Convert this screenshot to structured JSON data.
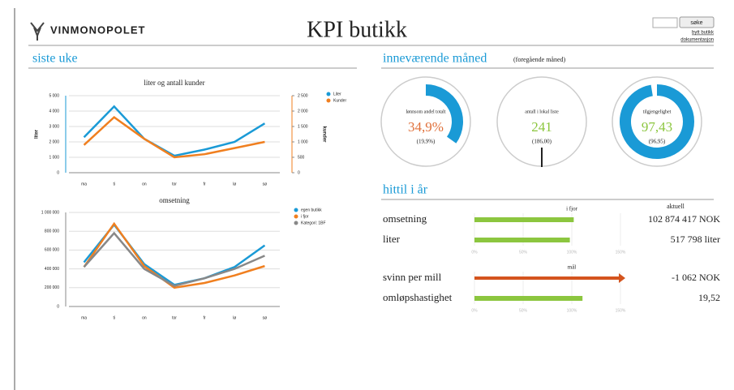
{
  "header": {
    "logo": "VINMONOPOLET",
    "title": "KPI butikk",
    "search_button": "søke",
    "links": [
      "bytt butikk",
      "dokumentasjon"
    ]
  },
  "sections": {
    "week": "siste uke",
    "month": "inneværende måned",
    "month_note": "(foregående måned)",
    "year": "hittil i år"
  },
  "chart_data": [
    {
      "type": "line",
      "title": "liter og antall kunder",
      "categories": [
        "ma",
        "ti",
        "on",
        "tor",
        "fr",
        "lø",
        "sø"
      ],
      "ylabel": "liter",
      "y2label": "kunder",
      "ylim": [
        0,
        5000
      ],
      "yticks": [
        0,
        {
          "value": 1000,
          "label": "1 000"
        },
        {
          "value": 2000,
          "label": "2 000"
        },
        {
          "value": 3000,
          "label": "3 000"
        },
        {
          "value": 4000,
          "label": "4 000"
        },
        {
          "value": 5000,
          "label": "5 000"
        }
      ],
      "y2lim": [
        0,
        2500
      ],
      "y2ticks": [
        0,
        500,
        {
          "value": 1000,
          "label": "1 000"
        },
        {
          "value": 1500,
          "label": "1 500"
        },
        {
          "value": 2000,
          "label": "2 000"
        },
        {
          "value": 2500,
          "label": "2 500"
        }
      ],
      "grid": true,
      "legend": "upper right",
      "series": [
        {
          "name": "Liter",
          "color": "#1a9ad6",
          "values": [
            2300,
            4300,
            2200,
            1100,
            1500,
            2000,
            3200
          ]
        },
        {
          "name": "Kunder",
          "color": "#f07f1f",
          "axis": "y2",
          "values": [
            900,
            1800,
            1100,
            500,
            600,
            800,
            1000
          ]
        }
      ]
    },
    {
      "type": "line",
      "title": "omsetning",
      "categories": [
        "ma",
        "ti",
        "on",
        "tor",
        "fr",
        "lø",
        "sø"
      ],
      "ylim": [
        0,
        1000000
      ],
      "yticks": [
        0,
        {
          "value": 200000,
          "label": "200 000"
        },
        {
          "value": 400000,
          "label": "400 000"
        },
        {
          "value": 600000,
          "label": "600 000"
        },
        {
          "value": 800000,
          "label": "800 000"
        },
        {
          "value": 1000000,
          "label": "1 000 000"
        }
      ],
      "grid": true,
      "legend": "upper right",
      "series": [
        {
          "name": "egen butikk",
          "color": "#1a9ad6",
          "values": [
            470000,
            870000,
            450000,
            230000,
            300000,
            420000,
            650000
          ]
        },
        {
          "name": "i fjor",
          "color": "#f07f1f",
          "values": [
            420000,
            880000,
            430000,
            200000,
            250000,
            330000,
            430000
          ]
        },
        {
          "name": "Kategori: 1BF",
          "color": "#888888",
          "values": [
            420000,
            780000,
            400000,
            220000,
            300000,
            400000,
            540000
          ]
        }
      ]
    }
  ],
  "gauges": [
    {
      "label": "lønnsom andel totalt",
      "value": 34.9,
      "value_label": "34,9%",
      "previous": "(19,9%)",
      "color": "#e0703a"
    },
    {
      "label": "antall i lokal liste",
      "value": 241,
      "previous": "(186,00)",
      "color": "#8cc63f"
    },
    {
      "label": "tilgjengelighet",
      "value": 97.43,
      "value_label": "97,43",
      "previous": "(96,95)",
      "color": "#8cc63f"
    }
  ],
  "ytd": {
    "value_header": "aktuell",
    "xlim": [
      0,
      150
    ],
    "groups": [
      {
        "header": "i fjor",
        "xticks": [
          {
            "value": 0,
            "label": "0%"
          },
          {
            "value": 50,
            "label": "50%"
          },
          {
            "value": 100,
            "label": "100%"
          },
          {
            "value": 150,
            "label": "150%"
          }
        ],
        "rows": [
          {
            "name": "omsetning",
            "percent": 102,
            "value": "102 874 417 NOK",
            "color": "#8cc63f"
          },
          {
            "name": "liter",
            "percent": 98,
            "value": "517 798 liter",
            "color": "#8cc63f"
          }
        ]
      },
      {
        "header": "mål",
        "xticks": [
          {
            "value": 0,
            "label": "0%"
          },
          {
            "value": 50,
            "label": "50%"
          },
          {
            "value": 100,
            "label": "100%"
          },
          {
            "value": 150,
            "label": "150%"
          }
        ],
        "rows": [
          {
            "name": "svinn per mill",
            "percent": 155,
            "value": "-1 062 NOK",
            "color": "#d4541e",
            "arrow": true
          },
          {
            "name": "omløpshastighet",
            "percent": 111,
            "value": "19,52",
            "color": "#8cc63f"
          }
        ]
      }
    ]
  }
}
